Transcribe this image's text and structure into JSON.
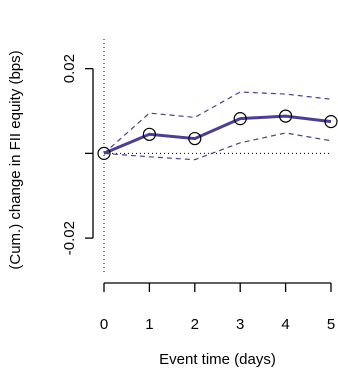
{
  "chart_data": {
    "type": "line",
    "title": "",
    "xlabel": "Event time (days)",
    "ylabel": "(Cum.) change in FII equity (bps)",
    "x": [
      0,
      1,
      2,
      3,
      4,
      5
    ],
    "x_tick_labels": [
      "0",
      "1",
      "2",
      "3",
      "4",
      "5"
    ],
    "y_ticks": [
      -0.02,
      0,
      0.02
    ],
    "y_tick_labels": [
      "-0.02",
      "",
      "0.02"
    ],
    "xlim": [
      0,
      5
    ],
    "ylim": [
      -0.028,
      0.027
    ],
    "grid": false,
    "series": [
      {
        "role": "estimate",
        "values": [
          0.0,
          0.0045,
          0.0035,
          0.0082,
          0.0088,
          0.0075
        ],
        "color": "#4b3f8f",
        "style": "solid",
        "markers": "open-circle"
      },
      {
        "role": "upper-band",
        "values": [
          0.0,
          0.0095,
          0.0085,
          0.0145,
          0.014,
          0.0128
        ],
        "color": "#4b3f8f",
        "style": "dashed"
      },
      {
        "role": "lower-band",
        "values": [
          0.0,
          -0.0008,
          -0.0015,
          0.0025,
          0.0048,
          0.003
        ],
        "color": "#4b3f8f",
        "style": "dashed"
      }
    ],
    "reference_lines": [
      {
        "orientation": "horizontal",
        "value": 0,
        "style": "dotted"
      },
      {
        "orientation": "vertical",
        "value": 0,
        "style": "dotted"
      }
    ]
  }
}
